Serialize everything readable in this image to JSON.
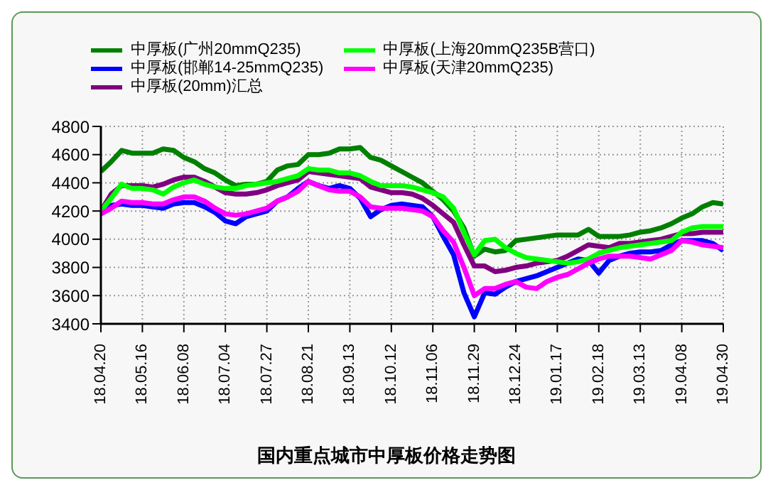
{
  "chart_data": {
    "type": "line",
    "title": "国内重点城市中厚板价格走势图",
    "categories": [
      "18.04.20",
      null,
      null,
      null,
      "18.05.16",
      null,
      null,
      null,
      "18.06.08",
      null,
      null,
      null,
      "18.07.04",
      null,
      null,
      null,
      "18.07.27",
      null,
      null,
      null,
      "18.08.21",
      null,
      null,
      null,
      "18.09.13",
      null,
      null,
      null,
      "18.10.12",
      null,
      null,
      null,
      "18.11.06",
      null,
      null,
      null,
      "18.11.29",
      null,
      null,
      null,
      "18.12.24",
      null,
      null,
      null,
      "19.01.17",
      null,
      null,
      null,
      "19.02.18",
      null,
      null,
      null,
      "19.03.13",
      null,
      null,
      null,
      "19.04.08",
      null,
      null,
      null,
      "19.04.30"
    ],
    "series": [
      {
        "name": "中厚板(广州20mmQ235)",
        "color": "#008000",
        "values": [
          4480,
          4550,
          4630,
          4610,
          4610,
          4610,
          4640,
          4630,
          4580,
          4550,
          4500,
          4470,
          4420,
          4380,
          4390,
          4390,
          4410,
          4490,
          4520,
          4530,
          4600,
          4600,
          4610,
          4640,
          4640,
          4650,
          4580,
          4560,
          4520,
          4480,
          4440,
          4400,
          4340,
          4280,
          4200,
          4080,
          3880,
          3930,
          3910,
          3920,
          3990,
          4000,
          4010,
          4020,
          4030,
          4030,
          4030,
          4070,
          4020,
          4020,
          4020,
          4030,
          4050,
          4060,
          4080,
          4110,
          4150,
          4180,
          4230,
          4260,
          4250
        ]
      },
      {
        "name": "中厚板(邯郸14-25mmQ235)",
        "color": "#0000ff",
        "values": [
          4180,
          4240,
          4250,
          4240,
          4240,
          4230,
          4220,
          4250,
          4260,
          4260,
          4230,
          4190,
          4130,
          4110,
          4160,
          4180,
          4200,
          4270,
          4300,
          4360,
          4410,
          4380,
          4360,
          4380,
          4360,
          4290,
          4160,
          4210,
          4240,
          4250,
          4240,
          4230,
          4160,
          4020,
          3890,
          3620,
          3450,
          3620,
          3610,
          3660,
          3700,
          3720,
          3740,
          3770,
          3800,
          3830,
          3860,
          3850,
          3760,
          3850,
          3880,
          3900,
          3910,
          3910,
          3920,
          3960,
          3990,
          3990,
          3990,
          3970,
          3920
        ]
      },
      {
        "name": "中厚板(20mm)汇总",
        "color": "#800080",
        "values": [
          4200,
          4320,
          4380,
          4380,
          4380,
          4370,
          4390,
          4420,
          4440,
          4440,
          4410,
          4370,
          4330,
          4320,
          4320,
          4330,
          4350,
          4380,
          4400,
          4420,
          4480,
          4470,
          4460,
          4450,
          4440,
          4430,
          4370,
          4350,
          4330,
          4330,
          4320,
          4290,
          4240,
          4180,
          4120,
          3960,
          3810,
          3810,
          3770,
          3780,
          3800,
          3810,
          3830,
          3840,
          3850,
          3880,
          3920,
          3960,
          3950,
          3940,
          3970,
          3970,
          3980,
          3990,
          4000,
          4020,
          4040,
          4040,
          4050,
          4050,
          4050
        ]
      },
      {
        "name": "中厚板(上海20mmQ235B营口)",
        "color": "#00ff00",
        "values": [
          4200,
          4290,
          4390,
          4360,
          4360,
          4350,
          4320,
          4370,
          4400,
          4420,
          4390,
          4370,
          4360,
          4360,
          4380,
          4390,
          4400,
          4410,
          4430,
          4450,
          4500,
          4490,
          4490,
          4470,
          4470,
          4450,
          4410,
          4380,
          4380,
          4380,
          4370,
          4350,
          4330,
          4300,
          4220,
          4050,
          3890,
          3990,
          4000,
          3940,
          3900,
          3870,
          3860,
          3850,
          3840,
          3830,
          3840,
          3860,
          3900,
          3920,
          3940,
          3950,
          3960,
          3970,
          3980,
          3990,
          4050,
          4080,
          4090,
          4090,
          4090
        ]
      },
      {
        "name": "中厚板(天津20mmQ235)",
        "color": "#ff00ff",
        "values": [
          4180,
          4220,
          4270,
          4260,
          4260,
          4250,
          4250,
          4280,
          4300,
          4300,
          4270,
          4220,
          4180,
          4170,
          4180,
          4200,
          4220,
          4270,
          4300,
          4340,
          4410,
          4380,
          4350,
          4340,
          4340,
          4300,
          4230,
          4220,
          4220,
          4220,
          4210,
          4200,
          4160,
          4060,
          3980,
          3800,
          3600,
          3650,
          3650,
          3680,
          3700,
          3660,
          3650,
          3700,
          3730,
          3750,
          3790,
          3830,
          3860,
          3880,
          3880,
          3880,
          3870,
          3860,
          3890,
          3920,
          3990,
          3980,
          3960,
          3950,
          3940
        ]
      }
    ],
    "ylim": [
      3400,
      4800
    ],
    "yticks": [
      3400,
      3600,
      3800,
      4000,
      4200,
      4400,
      4600,
      4800
    ],
    "grid": true,
    "legend": "top",
    "marker": "none",
    "line_style": "solid"
  }
}
